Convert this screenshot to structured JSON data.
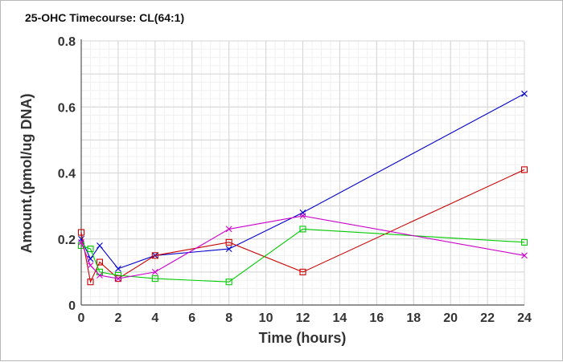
{
  "chart_data": {
    "type": "line",
    "title": "25-OHC Timecourse: CL(64:1)",
    "xlabel": "Time (hours)",
    "ylabel": "Amount.(pmol/ug DNA)",
    "xlim": [
      0,
      24
    ],
    "ylim": [
      0,
      0.8
    ],
    "xticks": [
      0,
      2,
      4,
      6,
      8,
      10,
      12,
      14,
      16,
      18,
      20,
      22,
      24
    ],
    "yticks": [
      0,
      0.2,
      0.4,
      0.6,
      0.8
    ],
    "ytick_labels": [
      "0",
      "0.2",
      "0.4",
      "0.6",
      "0.8"
    ],
    "grid": true,
    "series": [
      {
        "color": "#0000cc",
        "marker": "x",
        "points": [
          [
            0,
            0.2
          ],
          [
            0.5,
            0.14
          ],
          [
            1,
            0.18
          ],
          [
            2,
            0.11
          ],
          [
            4,
            0.15
          ],
          [
            8,
            0.17
          ],
          [
            12,
            0.28
          ],
          [
            24,
            0.64
          ]
        ]
      },
      {
        "color": "#cc0000",
        "marker": "square",
        "points": [
          [
            0,
            0.22
          ],
          [
            0.5,
            0.07
          ],
          [
            1,
            0.13
          ],
          [
            2,
            0.08
          ],
          [
            4,
            0.15
          ],
          [
            8,
            0.19
          ],
          [
            12,
            0.1
          ],
          [
            24,
            0.41
          ]
        ]
      },
      {
        "color": "#00cc00",
        "marker": "square",
        "points": [
          [
            0,
            0.18
          ],
          [
            0.5,
            0.17
          ],
          [
            1,
            0.1
          ],
          [
            2,
            0.09
          ],
          [
            4,
            0.08
          ],
          [
            8,
            0.07
          ],
          [
            12,
            0.23
          ],
          [
            24,
            0.19
          ]
        ]
      },
      {
        "color": "#cc00cc",
        "marker": "x",
        "points": [
          [
            0,
            0.19
          ],
          [
            0.5,
            0.12
          ],
          [
            1,
            0.09
          ],
          [
            2,
            0.08
          ],
          [
            4,
            0.1
          ],
          [
            8,
            0.23
          ],
          [
            12,
            0.27
          ],
          [
            24,
            0.15
          ]
        ]
      }
    ]
  }
}
